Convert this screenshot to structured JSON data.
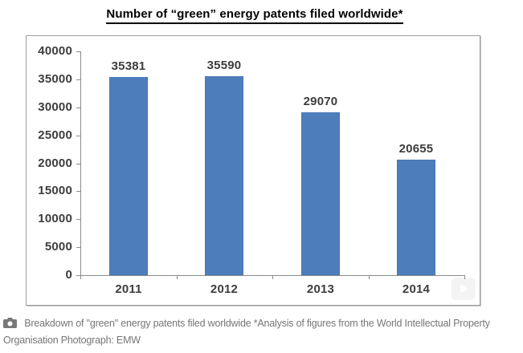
{
  "page": {
    "background_color": "#ffffff"
  },
  "chart_data": {
    "type": "bar",
    "title": "Number of “green” energy patents filed worldwide*",
    "categories": [
      "2011",
      "2012",
      "2013",
      "2014"
    ],
    "values": [
      35381,
      35590,
      29070,
      20655
    ],
    "value_labels": [
      "35381",
      "35590",
      "29070",
      "20655"
    ],
    "xlabel": "",
    "ylabel": "",
    "ylim": [
      0,
      40000
    ],
    "ytick_interval": 5000,
    "ytick_labels": [
      "40000",
      "35000",
      "30000",
      "25000",
      "20000",
      "15000",
      "10000",
      "5000",
      "0"
    ],
    "grid": false,
    "legend": "none",
    "bar_color": "#4d7ebb",
    "axis_color": "#8c8c8c",
    "label_color": "#3d3d3d",
    "border_color": "#9e9e9e"
  },
  "caption": {
    "icon": "camera-icon",
    "line1": "Breakdown of \"green\" energy patents filed worldwide *Analysis of figures from the World Intellectual Property",
    "line2": "Organisation Photograph: EMW",
    "text_color": "#767676"
  }
}
